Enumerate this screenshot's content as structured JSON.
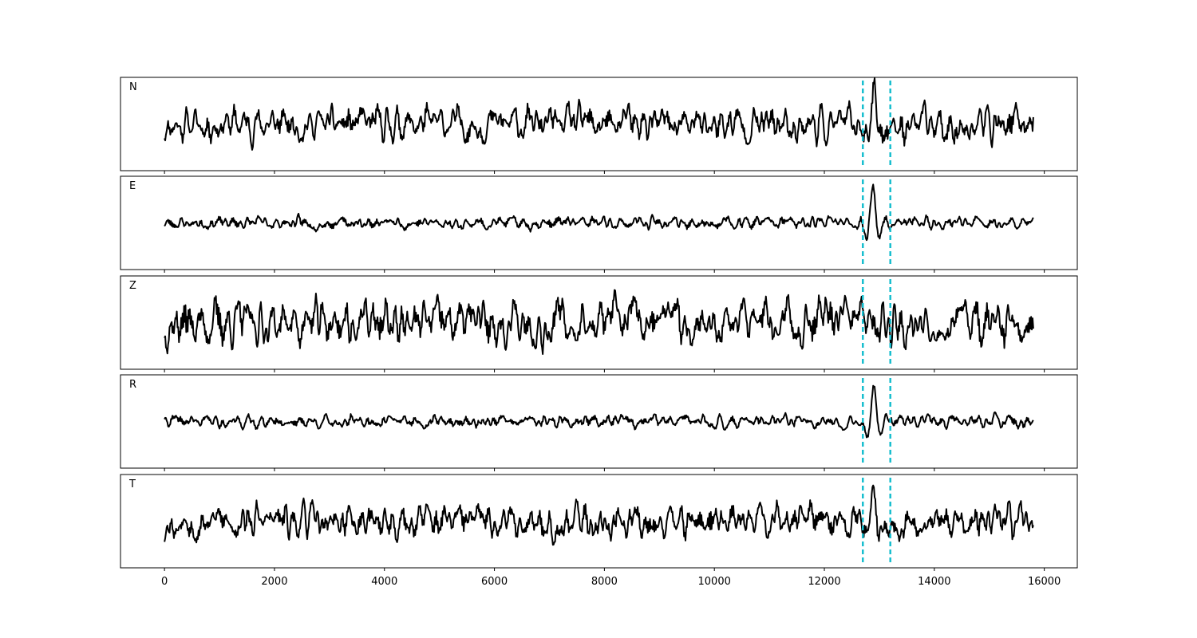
{
  "chart_data": {
    "type": "line",
    "panels": [
      {
        "label": "N",
        "amplitude": 1.0,
        "event_amplitude": 2.0,
        "event_center": 12900,
        "seed": 11
      },
      {
        "label": "E",
        "amplitude": 0.35,
        "event_amplitude": 2.6,
        "event_center": 12880,
        "seed": 23
      },
      {
        "label": "Z",
        "amplitude": 1.35,
        "event_amplitude": 1.5,
        "event_center": 12850,
        "seed": 37
      },
      {
        "label": "R",
        "amplitude": 0.35,
        "event_amplitude": 2.6,
        "event_center": 12900,
        "seed": 41
      },
      {
        "label": "T",
        "amplitude": 1.0,
        "event_amplitude": 1.8,
        "event_center": 12880,
        "seed": 53
      }
    ],
    "xlim": [
      -800,
      16600
    ],
    "data_range": [
      0,
      15800
    ],
    "ylim": [
      -3.2,
      3.2
    ],
    "x_ticks": [
      0,
      2000,
      4000,
      6000,
      8000,
      10000,
      12000,
      14000,
      16000
    ],
    "x_tick_labels": [
      "0",
      "2000",
      "4000",
      "6000",
      "8000",
      "10000",
      "12000",
      "14000",
      "16000"
    ],
    "markers": [
      12700,
      13200
    ],
    "marker_color": "#17becf",
    "line_color": "#000000",
    "grid": false
  }
}
